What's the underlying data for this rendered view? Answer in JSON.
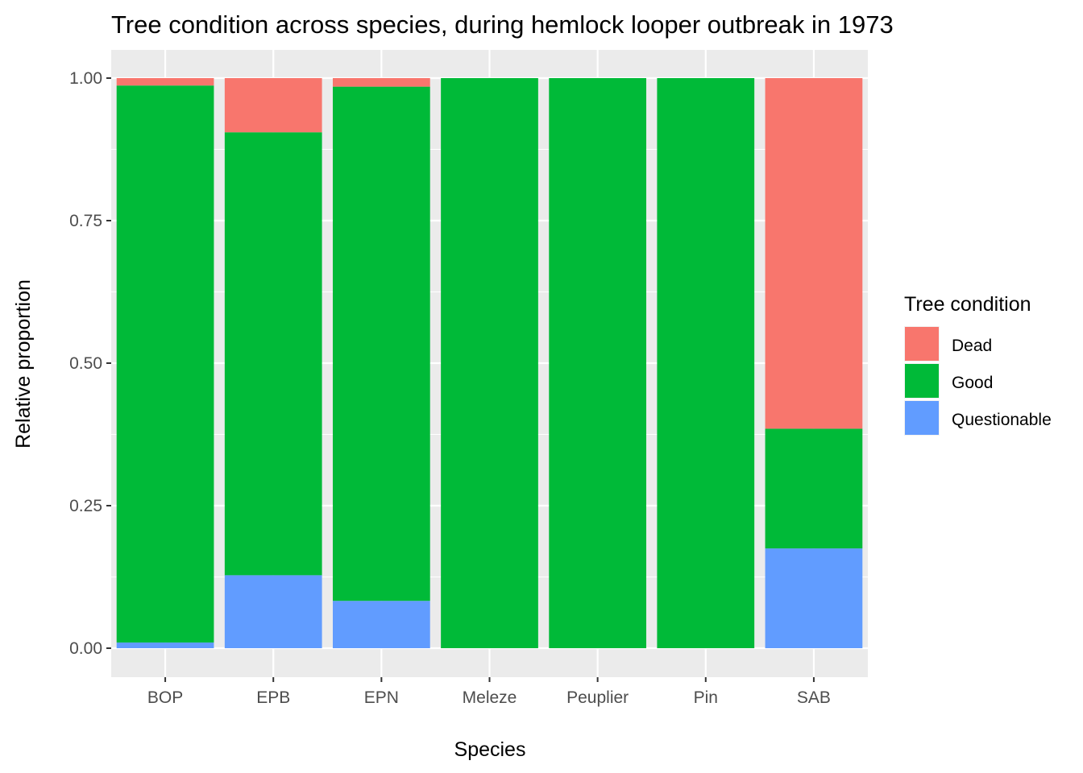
{
  "chart_data": {
    "type": "bar",
    "stacked": true,
    "title": "Tree condition across species, during hemlock looper outbreak in 1973",
    "xlabel": "Species",
    "ylabel": "Relative proportion",
    "ylim": [
      0,
      1
    ],
    "yticks": [
      "0.00",
      "0.25",
      "0.50",
      "0.75",
      "1.00"
    ],
    "categories": [
      "BOP",
      "EPB",
      "EPN",
      "Meleze",
      "Peuplier",
      "Pin",
      "SAB"
    ],
    "stack_order_bottom_to_top": [
      "Questionable",
      "Good",
      "Dead"
    ],
    "series": [
      {
        "name": "Dead",
        "color": "#F8766D",
        "values": [
          0.013,
          0.095,
          0.015,
          0.0,
          0.0,
          0.0,
          0.615
        ]
      },
      {
        "name": "Good",
        "color": "#00BA38",
        "values": [
          0.977,
          0.777,
          0.902,
          1.0,
          1.0,
          1.0,
          0.21
        ]
      },
      {
        "name": "Questionable",
        "color": "#619CFF",
        "values": [
          0.01,
          0.128,
          0.083,
          0.0,
          0.0,
          0.0,
          0.175
        ]
      }
    ],
    "grid": true,
    "legend": {
      "title": "Tree condition",
      "position": "right",
      "entries": [
        "Dead",
        "Good",
        "Questionable"
      ]
    },
    "panel_background": "#EBEBEB",
    "grid_color": "#FFFFFF"
  }
}
